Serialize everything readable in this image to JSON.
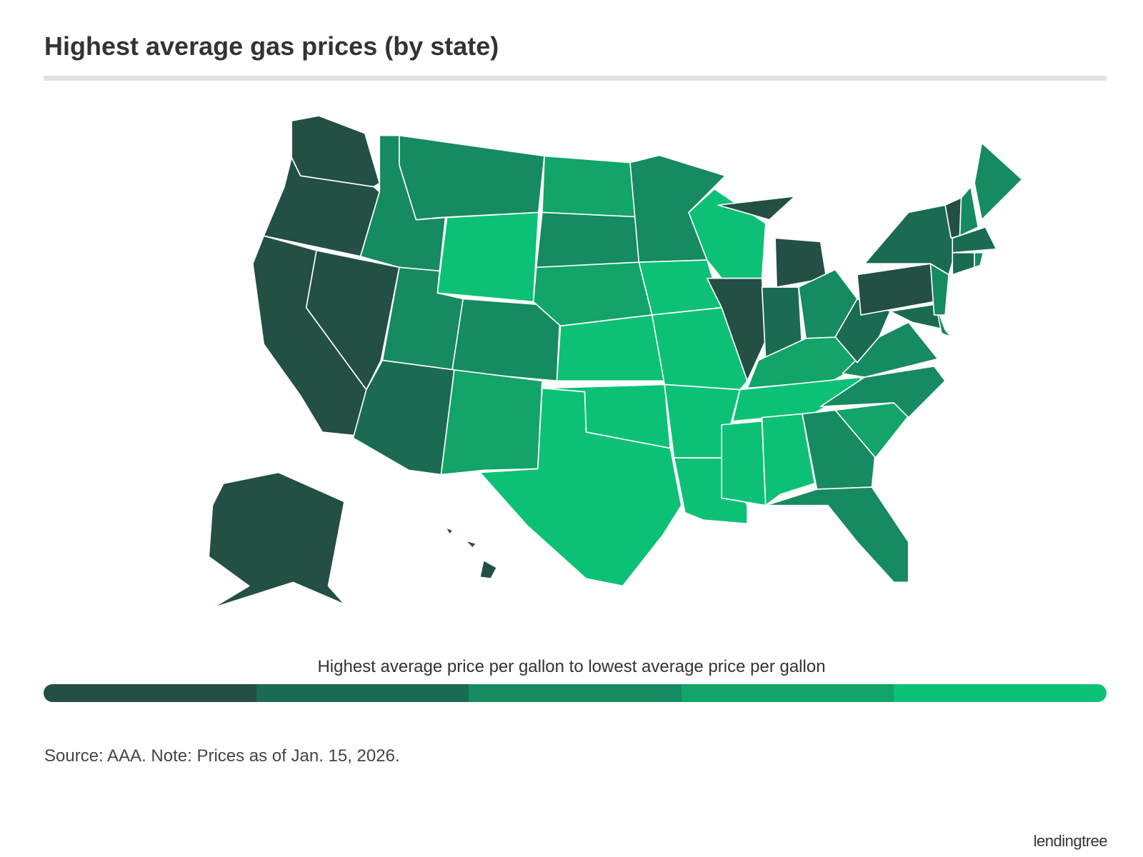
{
  "title": "Highest average gas prices (by state)",
  "legend": {
    "label": "Highest average price per gallon to lowest average price per gallon",
    "colors": [
      "#234f45",
      "#1b6b52",
      "#168a60",
      "#12a468",
      "#0cc176"
    ]
  },
  "source": "Source: AAA. Note: Prices as of Jan. 15, 2026.",
  "brand": "lendingtree"
}
